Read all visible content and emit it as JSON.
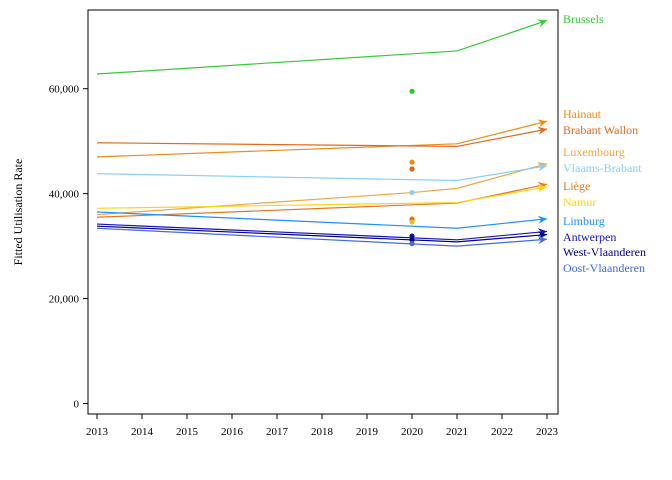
{
  "chart_data": {
    "type": "line",
    "title": "",
    "xlabel": "",
    "ylabel": "Fitted Utilisation Rate",
    "x_ticks": [
      "2013",
      "2014",
      "2015",
      "2016",
      "2017",
      "2018",
      "2019",
      "2020",
      "2021",
      "2022",
      "2023"
    ],
    "y_ticks": [
      "0",
      "20,000",
      "40,000",
      "60,000"
    ],
    "xlim": [
      2013,
      2023.25
    ],
    "ylim": [
      -2000,
      75000
    ],
    "grid": false,
    "legend": "right-edge labels",
    "series": [
      {
        "name": "Brussels",
        "color": "#33cc33",
        "x": [
          2013,
          2021,
          2023
        ],
        "y": [
          62800,
          67200,
          73000
        ],
        "point": 59500,
        "point_color": "#22cc22"
      },
      {
        "name": "Hainaut",
        "color": "#ef8a17",
        "x": [
          2013,
          2021,
          2023
        ],
        "y": [
          47000,
          49500,
          53800
        ],
        "point": 46000,
        "point_color": "#ef8a17"
      },
      {
        "name": "Brabant Wallon",
        "color": "#e06a1f",
        "x": [
          2013,
          2021,
          2023
        ],
        "y": [
          49700,
          49000,
          52300
        ],
        "point": 44700,
        "point_color": "#d2691e"
      },
      {
        "name": "Luxembourg",
        "color": "#f0a640",
        "x": [
          2013,
          2020,
          2021,
          2023
        ],
        "y": [
          36000,
          40200,
          41000,
          45700
        ],
        "point": 35200,
        "point_color": "#e8a33a"
      },
      {
        "name": "Vlaams-Brabant",
        "color": "#87cefa",
        "x": [
          2013,
          2021,
          2023
        ],
        "y": [
          43800,
          42500,
          45300
        ],
        "point": 40200,
        "point_color": "#87cefa"
      },
      {
        "name": "Liège",
        "color": "#e0781f",
        "x": [
          2013,
          2021,
          2023
        ],
        "y": [
          35500,
          38200,
          41800
        ],
        "point": 35000,
        "point_color": "#d2691e"
      },
      {
        "name": "Namur",
        "color": "#ffd11a",
        "x": [
          2013,
          2021,
          2023
        ],
        "y": [
          37200,
          38300,
          41300
        ],
        "point": 34600,
        "point_color": "#e8c21a"
      },
      {
        "name": "Limburg",
        "color": "#1e90ff",
        "x": [
          2013,
          2021,
          2023
        ],
        "y": [
          36500,
          33400,
          35200
        ],
        "point": 31600,
        "point_color": "#1e90ff"
      },
      {
        "name": "Antwerpen",
        "color": "#1414b8",
        "x": [
          2013,
          2021,
          2023
        ],
        "y": [
          34200,
          31200,
          32800
        ],
        "point": 31900,
        "point_color": "#1010a0"
      },
      {
        "name": "West-Vlaanderen",
        "color": "#00008b",
        "x": [
          2013,
          2021,
          2023
        ],
        "y": [
          33800,
          30800,
          32200
        ],
        "point": 31200,
        "point_color": "#00008b"
      },
      {
        "name": "Oost-Vlaanderen",
        "color": "#4169e1",
        "x": [
          2013,
          2021,
          2023
        ],
        "y": [
          33400,
          30000,
          31300
        ],
        "point": 30500,
        "point_color": "#4169e1"
      }
    ]
  }
}
